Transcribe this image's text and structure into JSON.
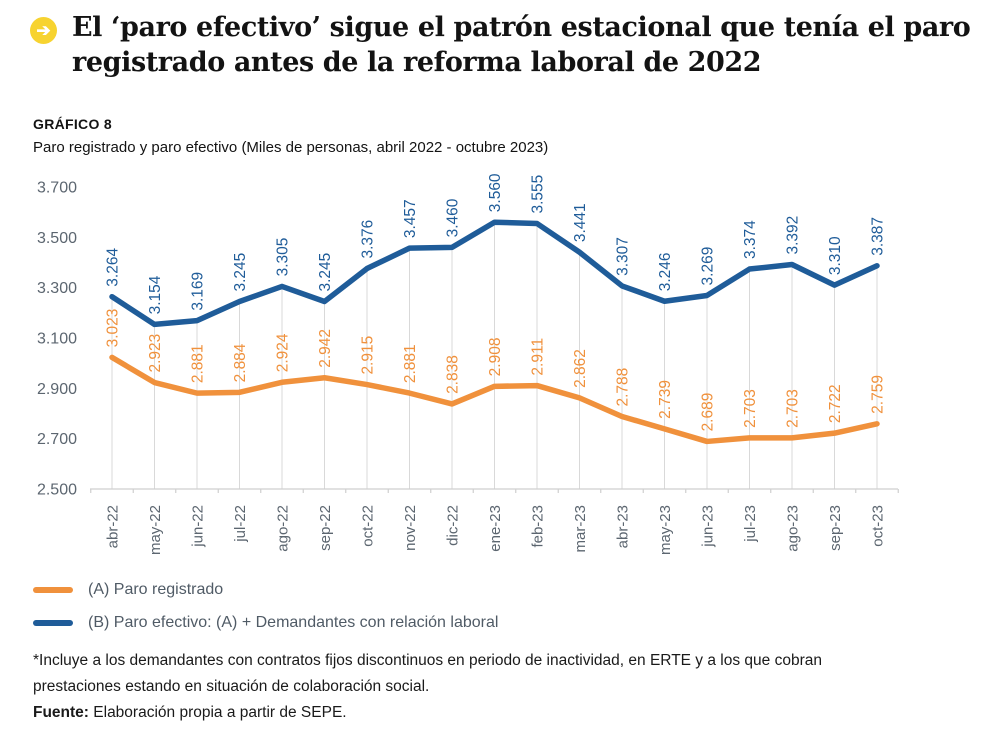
{
  "header": {
    "bullet_icon": "arrow-right-icon",
    "title": "El ‘paro efectivo’ sigue el patrón estacional que tenía el paro registrado antes de la reforma laboral de 2022",
    "title_lines": [
      "El ‘paro efectivo’ sigue el patrón estacional que tenía el paro",
      "registrado antes de la reforma laboral de 2022"
    ]
  },
  "chart_header": {
    "label": "GRÁFICO 8",
    "subtitle": "Paro registrado y paro efectivo (Miles de personas, abril 2022 - octubre 2023)"
  },
  "chart_data": {
    "type": "line",
    "title": "Paro registrado y paro efectivo (Miles de personas, abril 2022 - octubre 2023)",
    "categories": [
      "abr-22",
      "may-22",
      "jun-22",
      "jul-22",
      "ago-22",
      "sep-22",
      "oct-22",
      "nov-22",
      "dic-22",
      "ene-23",
      "feb-23",
      "mar-23",
      "abr-23",
      "may-23",
      "jun-23",
      "jul-23",
      "ago-23",
      "sep-23",
      "oct-23"
    ],
    "series": [
      {
        "name": "(A) Paro registrado",
        "color_key": "orange",
        "values": [
          3023,
          2923,
          2881,
          2884,
          2924,
          2942,
          2915,
          2881,
          2838,
          2908,
          2911,
          2862,
          2788,
          2739,
          2689,
          2703,
          2703,
          2722,
          2759
        ]
      },
      {
        "name": "(B) Paro efectivo: (A) + Demandantes con relación laboral",
        "color_key": "blue",
        "values": [
          3264,
          3154,
          3169,
          3245,
          3305,
          3245,
          3376,
          3457,
          3460,
          3560,
          3555,
          3441,
          3307,
          3246,
          3269,
          3374,
          3392,
          3310,
          3387
        ]
      }
    ],
    "ylim": [
      2500,
      3700
    ],
    "yticks": [
      2500,
      2700,
      2900,
      3100,
      3300,
      3500,
      3700
    ],
    "ytick_labels": [
      "2.500",
      "2.700",
      "2.900",
      "3.100",
      "3.300",
      "3.500",
      "3.700"
    ],
    "value_label_format": "thousands-dot",
    "x_label_rotation": -90,
    "data_label_rotation": -90,
    "grid": "vertical-droplines-from-top-series",
    "legend_position": "bottom-left"
  },
  "footer": {
    "note_lines": [
      "*Incluye a los demandantes con contratos fijos discontinuos en periodo de inactividad, en ERTE y a los que cobran",
      "prestaciones estando en situación de colaboración social."
    ],
    "source_label": "Fuente:",
    "source_text": "Elaboración propia a partir de SEPE."
  },
  "colors": {
    "orange": "#F0913C",
    "blue": "#1F5C99",
    "axis_text": "#5C6670",
    "gridline": "#D9D9D9",
    "axis_line": "#CFCFCF",
    "bullet_yellow": "#F7D330",
    "legend_text": "#505B66",
    "title_text": "#131313"
  }
}
